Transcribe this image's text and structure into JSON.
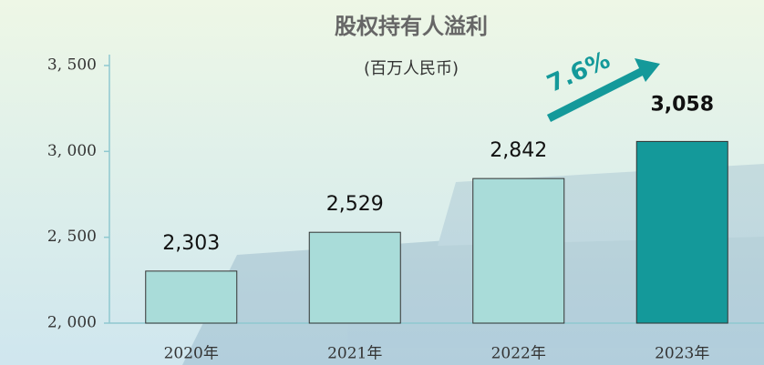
{
  "chart_data": {
    "type": "bar",
    "title": "股权持有人溢利",
    "subtitle": "(百万人民币)",
    "categories": [
      "2020年",
      "2021年",
      "2022年",
      "2023年"
    ],
    "values": [
      2303,
      2529,
      2842,
      3058
    ],
    "value_labels": [
      "2,303",
      "2,529",
      "2,842",
      "3,058"
    ],
    "colors": [
      "#a9dcd9",
      "#a9dcd9",
      "#a9dcd9",
      "#14999a"
    ],
    "ylim": [
      2000,
      3500
    ],
    "yticks": [
      {
        "value": 2000,
        "label": "2, 000"
      },
      {
        "value": 2500,
        "label": "2, 500"
      },
      {
        "value": 3000,
        "label": "3, 000"
      },
      {
        "value": 3500,
        "label": "3, 500"
      }
    ],
    "annotation": "7.6%"
  }
}
